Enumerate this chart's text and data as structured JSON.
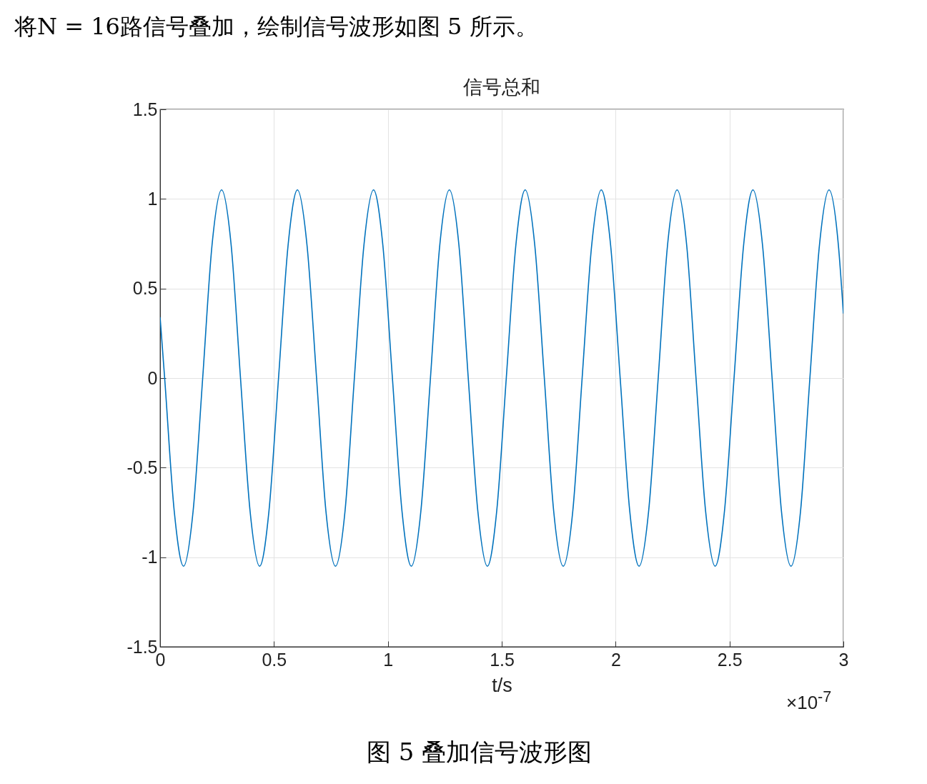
{
  "chart_data": {
    "type": "line",
    "title": "信号总和",
    "xlabel": "t/s",
    "annotations": [
      "将N = 16路信号叠加，绘制信号波形如图 5 所示。",
      "×10$^{-7}$",
      "图 5  叠加信号波形图"
    ],
    "x": [
      0,
      0.02,
      0.062,
      0.103,
      0.145,
      0.187,
      0.228,
      0.27,
      0.312,
      0.353,
      0.395,
      0.437,
      0.478,
      0.52,
      0.562,
      0.603,
      0.645,
      0.687,
      0.728,
      0.77,
      0.812,
      0.853,
      0.895,
      0.937,
      0.978,
      1.02,
      1.062,
      1.103,
      1.145,
      1.187,
      1.228,
      1.27,
      1.312,
      1.353,
      1.395,
      1.437,
      1.478,
      1.52,
      1.562,
      1.603,
      1.645,
      1.687,
      1.728,
      1.77,
      1.812,
      1.853,
      1.895,
      1.937,
      1.978,
      2.02,
      2.062,
      2.103,
      2.145,
      2.187,
      2.228,
      2.27,
      2.312,
      2.353,
      2.395,
      2.437,
      2.478,
      2.52,
      2.562,
      2.603,
      2.645,
      2.687,
      2.728,
      2.77,
      2.812,
      2.853,
      2.895,
      2.937,
      2.978,
      3
    ],
    "series": [
      {
        "color": "#0072bd",
        "values": [
          0.34,
          0,
          -0.742,
          -1.05,
          -0.742,
          0,
          0.742,
          1.05,
          0.742,
          0,
          -0.742,
          -1.05,
          -0.742,
          0,
          0.742,
          1.05,
          0.742,
          0,
          -0.742,
          -1.05,
          -0.742,
          0,
          0.742,
          1.05,
          0.742,
          0,
          -0.742,
          -1.05,
          -0.742,
          0,
          0.742,
          1.05,
          0.742,
          0,
          -0.742,
          -1.05,
          -0.742,
          0,
          0.742,
          1.05,
          0.742,
          0,
          -0.742,
          -1.05,
          -0.742,
          0,
          0.742,
          1.05,
          0.742,
          0,
          -0.742,
          -1.05,
          -0.742,
          0,
          0.742,
          1.05,
          0.742,
          0,
          -0.742,
          -1.05,
          -0.742,
          0,
          0.742,
          1.05,
          0.742,
          0,
          -0.742,
          -1.05,
          -0.742,
          0,
          0.742,
          1.05,
          0.742,
          0.36
        ]
      }
    ],
    "xlim": [
      0,
      3
    ],
    "xticks": [
      0,
      0.5,
      1,
      1.5,
      2,
      2.5,
      3
    ],
    "ylim": [
      -1.5,
      1.5
    ],
    "yticks": [
      -1.5,
      -1,
      -0.5,
      0,
      0.5,
      1,
      1.5
    ],
    "grid": true,
    "line_style": "solid",
    "marker": "none"
  }
}
